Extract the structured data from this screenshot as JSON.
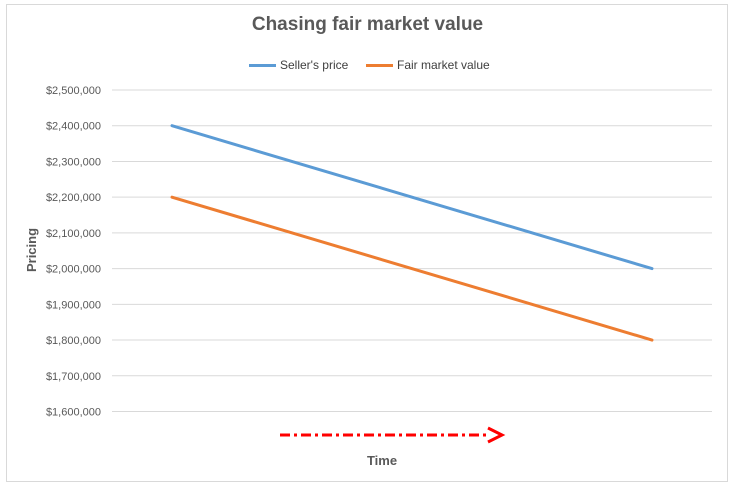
{
  "chart_data": {
    "type": "line",
    "title": "Chasing fair market value",
    "xlabel": "Time",
    "ylabel": "Pricing",
    "x": [
      1,
      2
    ],
    "series": [
      {
        "name": "Seller's price",
        "values": [
          2400000,
          2000000
        ],
        "color": "#5b9bd5"
      },
      {
        "name": "Fair market value",
        "values": [
          2200000,
          1800000
        ],
        "color": "#ed7d31"
      }
    ],
    "ylim": [
      1550000,
      2500000
    ],
    "yticks": [
      1600000,
      1700000,
      1800000,
      1900000,
      2000000,
      2100000,
      2200000,
      2300000,
      2400000,
      2500000
    ],
    "ytick_labels": [
      "$1,600,000",
      "$1,700,000",
      "$1,800,000",
      "$1,900,000",
      "$2,000,000",
      "$2,100,000",
      "$2,200,000",
      "$2,300,000",
      "$2,400,000",
      "$2,500,000"
    ],
    "grid": true,
    "legend_position": "top",
    "annotation": {
      "type": "arrow",
      "style": "dash-dot",
      "color": "#ff0000",
      "direction": "right"
    }
  }
}
